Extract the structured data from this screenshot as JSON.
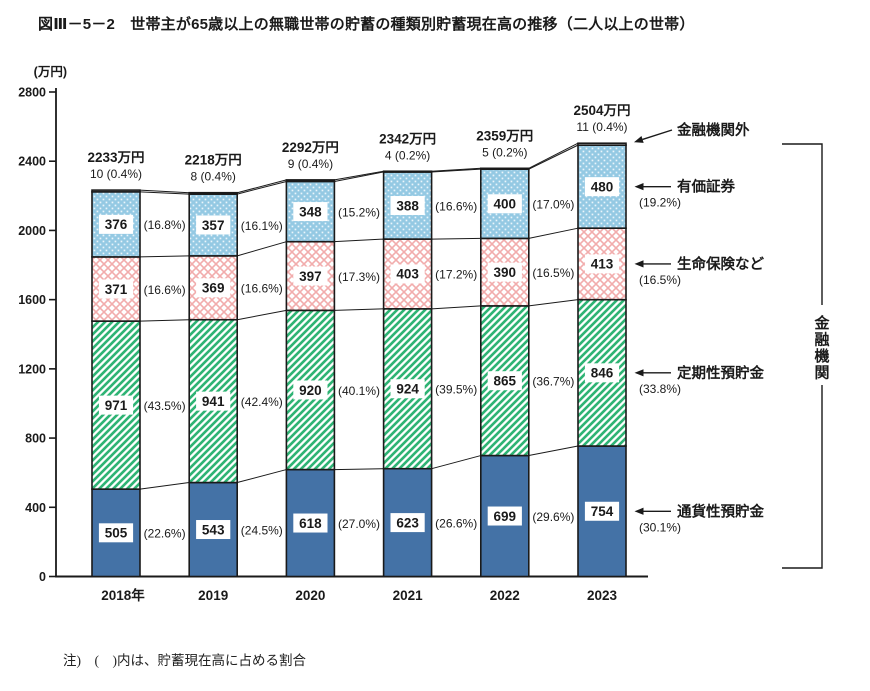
{
  "title": "図Ⅲ－5－2　世帯主が65歳以上の無職世帯の貯蓄の種類別貯蓄現在高の推移（二人以上の世帯）",
  "note": "注)　(　)内は、貯蓄現在高に占める割合",
  "colors": {
    "ink": "#1a1a1a",
    "currency_deposits_fill": "#4472A6",
    "time_deposits_stripe": "#2EB374",
    "life_insurance_lattice": "#F2ACAC",
    "securities_bg": "#94C9E3",
    "securities_dot": "#EAF5FB",
    "outside_fill": "#ffffff"
  },
  "chart_data": {
    "type": "bar",
    "stacked": true,
    "title": "世帯主が65歳以上の無職世帯の貯蓄の種類別貯蓄現在高の推移（二人以上の世帯）",
    "y_unit_label": "(万円)",
    "ylim": [
      0,
      2800
    ],
    "y_ticks": [
      0,
      400,
      800,
      1200,
      1600,
      2000,
      2400,
      2800
    ],
    "grid": false,
    "legend_position": "right-annotations",
    "categories": [
      "2018年",
      "2019",
      "2020",
      "2021",
      "2022",
      "2023"
    ],
    "series": [
      {
        "name": "通貨性預貯金",
        "style": "solid",
        "values": [
          505,
          543,
          618,
          623,
          699,
          754
        ],
        "pct": [
          "22.6%",
          "24.5%",
          "27.0%",
          "26.6%",
          "29.6%",
          "30.1%"
        ]
      },
      {
        "name": "定期性預貯金",
        "style": "green-hatch",
        "values": [
          971,
          941,
          920,
          924,
          865,
          846
        ],
        "pct": [
          "43.5%",
          "42.4%",
          "40.1%",
          "39.5%",
          "36.7%",
          "33.8%"
        ]
      },
      {
        "name": "生命保険など",
        "style": "pink-lattice",
        "values": [
          371,
          369,
          397,
          403,
          390,
          413
        ],
        "pct": [
          "16.6%",
          "16.6%",
          "17.3%",
          "17.2%",
          "16.5%",
          "16.5%"
        ]
      },
      {
        "name": "有価証券",
        "style": "blue-dots",
        "values": [
          376,
          357,
          348,
          388,
          400,
          480
        ],
        "pct": [
          "16.8%",
          "16.1%",
          "15.2%",
          "16.6%",
          "17.0%",
          "19.2%"
        ]
      },
      {
        "name": "金融機関外",
        "style": "plain",
        "values": [
          10,
          8,
          9,
          4,
          5,
          11
        ],
        "pct": [
          "0.4%",
          "0.4%",
          "0.4%",
          "0.2%",
          "0.2%",
          "0.4%"
        ]
      }
    ],
    "totals": [
      2233,
      2218,
      2292,
      2342,
      2359,
      2504
    ],
    "total_suffix": "万円"
  },
  "right_annotations": {
    "labels": [
      "金融機関外",
      "有価証券",
      "生命保険など",
      "定期性預貯金",
      "通貨性預貯金"
    ],
    "bracket_label": "金融機関"
  }
}
